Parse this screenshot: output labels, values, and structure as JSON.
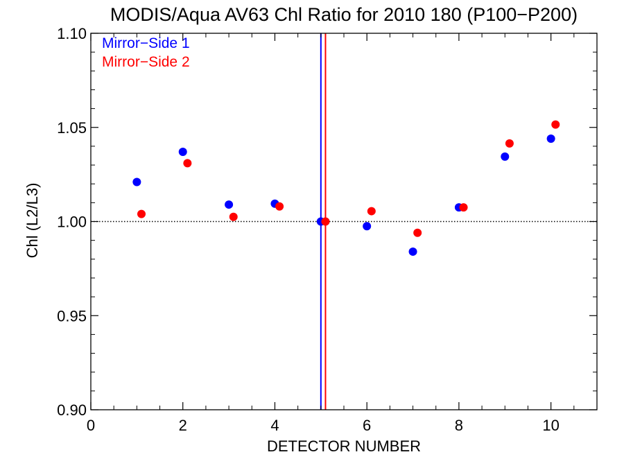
{
  "chart_data": {
    "type": "scatter",
    "title": "MODIS/Aqua AV63 Chl Ratio for 2010 180 (P100−P200)",
    "xlabel": "DETECTOR NUMBER",
    "ylabel": "Chl (L2/L3)",
    "xlim": [
      0,
      11
    ],
    "ylim": [
      0.9,
      1.1
    ],
    "xticks": [
      0,
      2,
      4,
      6,
      8,
      10
    ],
    "xtick_labels": [
      "0",
      "2",
      "4",
      "6",
      "8",
      "10"
    ],
    "yticks": [
      0.9,
      0.95,
      1.0,
      1.05,
      1.1
    ],
    "ytick_labels": [
      "0.90",
      "0.95",
      "1.00",
      "1.05",
      "1.10"
    ],
    "x_minor_step": 0.5,
    "y_minor_step": 0.01,
    "reference_line_y": 1.0,
    "legend_position": "top-left",
    "series": [
      {
        "name": "Mirror−Side 1",
        "color": "#0000ff",
        "x": [
          1,
          2,
          3,
          4,
          5,
          6,
          7,
          8,
          9,
          10
        ],
        "y": [
          1.021,
          1.037,
          1.009,
          1.0095,
          1.0,
          0.9975,
          0.984,
          1.0075,
          1.0345,
          1.044
        ],
        "vertical_line_x": 5.0
      },
      {
        "name": "Mirror−Side 2",
        "color": "#ff0000",
        "x": [
          1.1,
          2.1,
          3.1,
          4.1,
          5.1,
          6.1,
          7.1,
          8.1,
          9.1,
          10.1
        ],
        "y": [
          1.004,
          1.031,
          1.0025,
          1.008,
          1.0,
          1.0055,
          0.994,
          1.0075,
          1.0415,
          1.0515
        ],
        "vertical_line_x": 5.1
      }
    ]
  }
}
